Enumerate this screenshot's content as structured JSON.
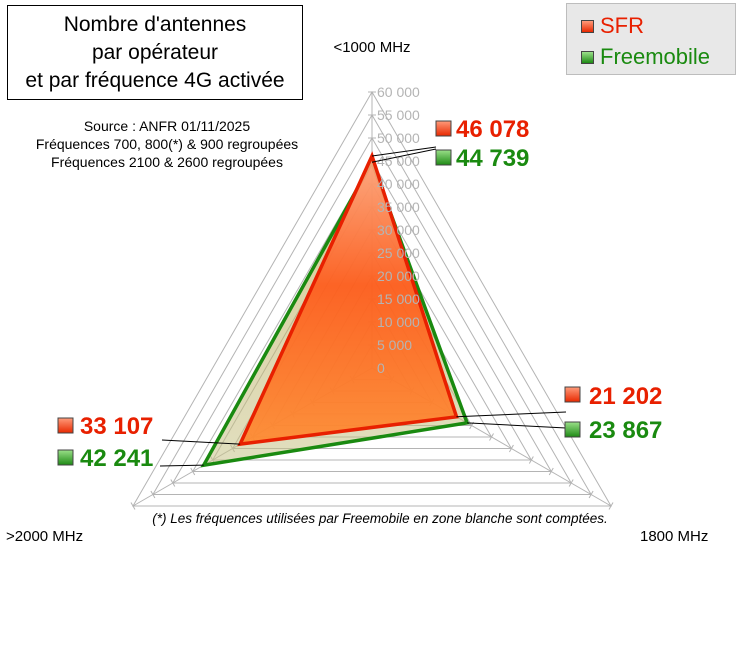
{
  "title_lines": [
    "Nombre d'antennes",
    "par opérateur",
    "et par fréquence 4G activée"
  ],
  "source_lines": [
    "Source : ANFR 01/11/2025",
    "Fréquences 700, 800(*) & 900 regroupées",
    "Fréquences 2100 & 2600 regroupées"
  ],
  "footnote": "(*) Les fréquences utilisées par Freemobile en zone blanche sont comptées.",
  "colors": {
    "sfr": "#e82000",
    "freemobile": "#1a8a10",
    "grid": "#b4b4b4"
  },
  "legend": [
    {
      "name": "SFR",
      "color": "#e82000"
    },
    {
      "name": "Freemobile",
      "color": "#1a8a10"
    }
  ],
  "chart_data": {
    "type": "radar",
    "axes": [
      "<1000 MHz",
      "1800 MHz",
      ">2000 MHz"
    ],
    "range": [
      0,
      60000
    ],
    "ticks": [
      0,
      5000,
      10000,
      15000,
      20000,
      25000,
      30000,
      35000,
      40000,
      45000,
      50000,
      55000,
      60000
    ],
    "tick_labels": [
      "0",
      "5 000",
      "10 000",
      "15 000",
      "20 000",
      "25 000",
      "30 000",
      "35 000",
      "40 000",
      "45 000",
      "50 000",
      "55 000",
      "60 000"
    ],
    "grid": true,
    "legend_position": "top-right",
    "series": [
      {
        "name": "SFR",
        "values": [
          46078,
          21202,
          33107
        ],
        "labels": [
          "46 078",
          "21 202",
          "33 107"
        ]
      },
      {
        "name": "Freemobile",
        "values": [
          44739,
          23867,
          42241
        ],
        "labels": [
          "44 739",
          "23 867",
          "42 241"
        ]
      }
    ]
  }
}
